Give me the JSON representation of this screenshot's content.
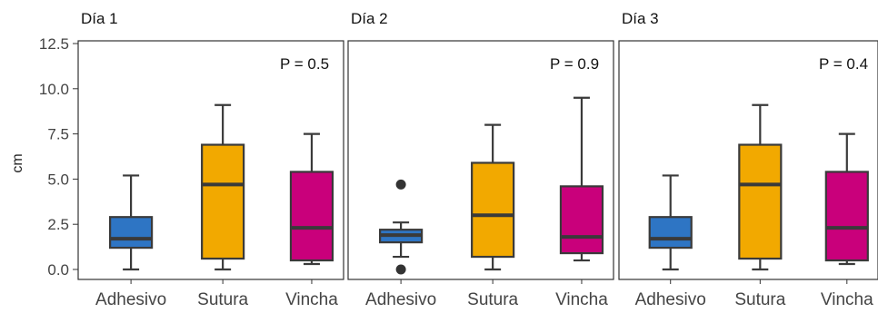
{
  "chart_data": {
    "type": "boxplot",
    "ylabel": "cm",
    "ylim": [
      0,
      12.5
    ],
    "yticks": [
      "0.0",
      "2.5",
      "5.0",
      "7.5",
      "10.0",
      "12.5"
    ],
    "categories": [
      "Adhesivo",
      "Sutura",
      "Vincha"
    ],
    "colors": {
      "Adhesivo": "#2e75c4",
      "Sutura": "#f2a900",
      "Vincha": "#c9007b"
    },
    "grid": false,
    "panels": [
      {
        "title": "Día 1",
        "annotation": "P = 0.5",
        "boxes": [
          {
            "category": "Adhesivo",
            "min": 0,
            "q1": 1.2,
            "median": 1.7,
            "q3": 2.9,
            "max": 5.2,
            "outliers": []
          },
          {
            "category": "Sutura",
            "min": 0,
            "q1": 0.6,
            "median": 4.7,
            "q3": 6.9,
            "max": 9.1,
            "outliers": []
          },
          {
            "category": "Vincha",
            "min": 0.3,
            "q1": 0.5,
            "median": 2.3,
            "q3": 5.4,
            "max": 7.5,
            "outliers": []
          }
        ]
      },
      {
        "title": "Día 2",
        "annotation": "P = 0.9",
        "boxes": [
          {
            "category": "Adhesivo",
            "min": 0.7,
            "q1": 1.5,
            "median": 1.9,
            "q3": 2.2,
            "max": 2.6,
            "outliers": [
              4.7,
              0.0
            ]
          },
          {
            "category": "Sutura",
            "min": 0,
            "q1": 0.7,
            "median": 3.0,
            "q3": 5.9,
            "max": 8.0,
            "outliers": []
          },
          {
            "category": "Vincha",
            "min": 0.5,
            "q1": 0.9,
            "median": 1.8,
            "q3": 4.6,
            "max": 9.5,
            "outliers": []
          }
        ]
      },
      {
        "title": "Día 3",
        "annotation": "P = 0.4",
        "boxes": [
          {
            "category": "Adhesivo",
            "min": 0,
            "q1": 1.2,
            "median": 1.7,
            "q3": 2.9,
            "max": 5.2,
            "outliers": []
          },
          {
            "category": "Sutura",
            "min": 0,
            "q1": 0.6,
            "median": 4.7,
            "q3": 6.9,
            "max": 9.1,
            "outliers": []
          },
          {
            "category": "Vincha",
            "min": 0.3,
            "q1": 0.5,
            "median": 2.3,
            "q3": 5.4,
            "max": 7.5,
            "outliers": []
          }
        ]
      }
    ]
  }
}
